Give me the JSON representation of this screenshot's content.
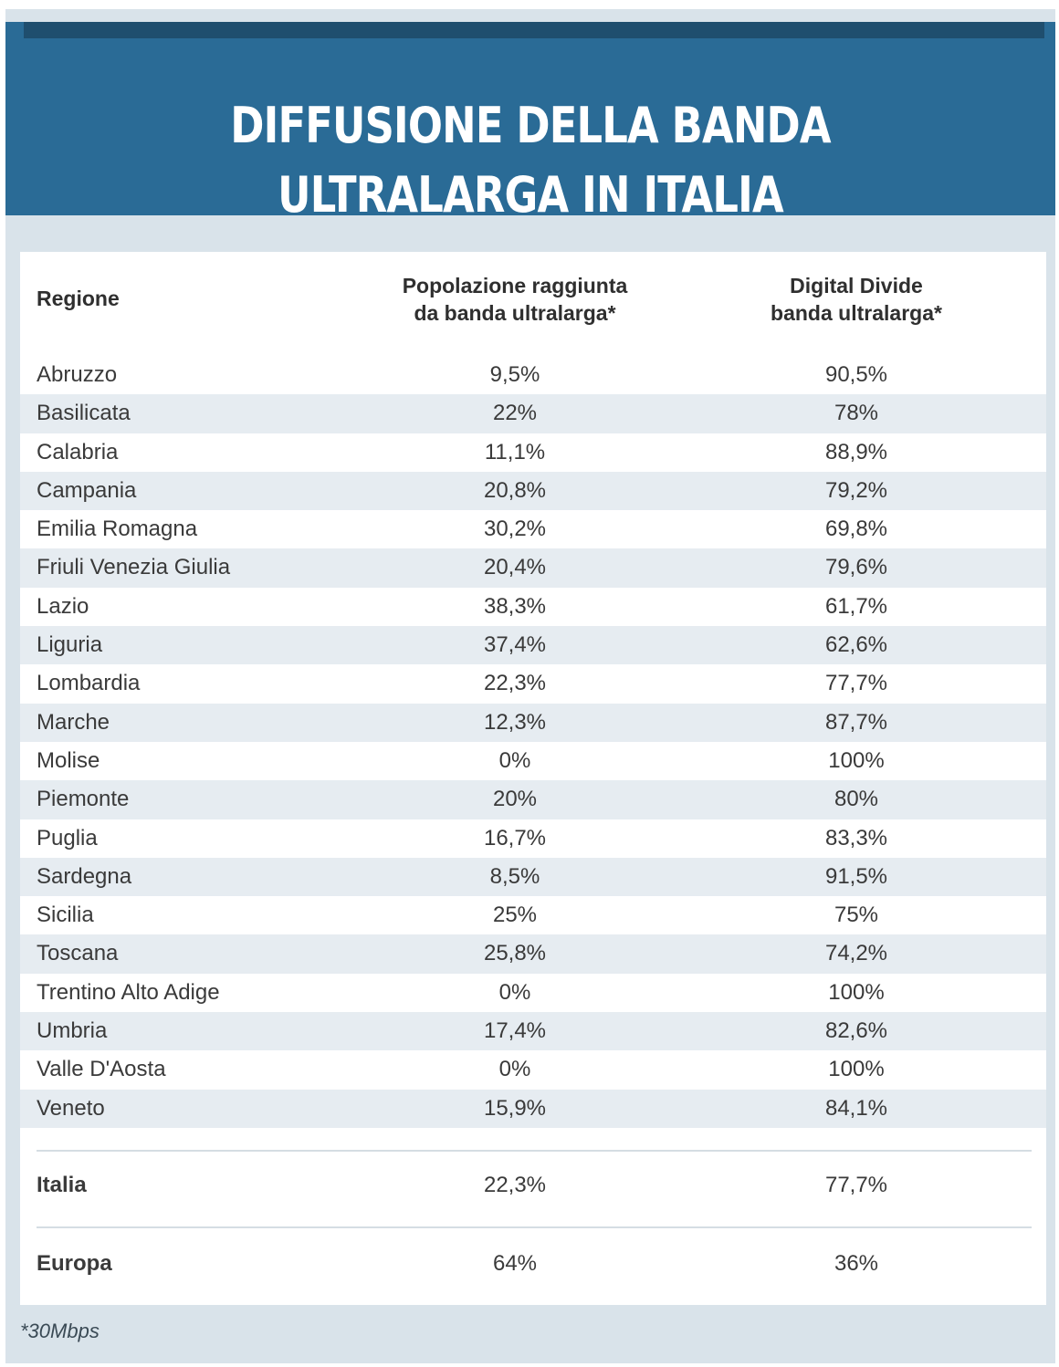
{
  "title": "DIFFUSIONE DELLA BANDA ULTRALARGA IN ITALIA",
  "columns": {
    "region": "Regione",
    "population": [
      "Popolazione raggiunta",
      "da banda ultralarga*"
    ],
    "digital_divide": [
      "Digital Divide",
      "banda ultralarga*"
    ]
  },
  "rows": [
    {
      "region": "Abruzzo",
      "population": "9,5%",
      "digital_divide": "90,5%"
    },
    {
      "region": "Basilicata",
      "population": "22%",
      "digital_divide": "78%"
    },
    {
      "region": "Calabria",
      "population": "11,1%",
      "digital_divide": "88,9%"
    },
    {
      "region": "Campania",
      "population": "20,8%",
      "digital_divide": "79,2%"
    },
    {
      "region": "Emilia Romagna",
      "population": "30,2%",
      "digital_divide": "69,8%"
    },
    {
      "region": "Friuli Venezia Giulia",
      "population": "20,4%",
      "digital_divide": "79,6%"
    },
    {
      "region": "Lazio",
      "population": "38,3%",
      "digital_divide": "61,7%"
    },
    {
      "region": "Liguria",
      "population": "37,4%",
      "digital_divide": "62,6%"
    },
    {
      "region": "Lombardia",
      "population": "22,3%",
      "digital_divide": "77,7%"
    },
    {
      "region": "Marche",
      "population": "12,3%",
      "digital_divide": "87,7%"
    },
    {
      "region": "Molise",
      "population": "0%",
      "digital_divide": "100%"
    },
    {
      "region": "Piemonte",
      "population": "20%",
      "digital_divide": "80%"
    },
    {
      "region": "Puglia",
      "population": "16,7%",
      "digital_divide": "83,3%"
    },
    {
      "region": "Sardegna",
      "population": "8,5%",
      "digital_divide": "91,5%"
    },
    {
      "region": "Sicilia",
      "population": "25%",
      "digital_divide": "75%"
    },
    {
      "region": "Toscana",
      "population": "25,8%",
      "digital_divide": "74,2%"
    },
    {
      "region": "Trentino Alto Adige",
      "population": "0%",
      "digital_divide": "100%"
    },
    {
      "region": "Umbria",
      "population": "17,4%",
      "digital_divide": "82,6%"
    },
    {
      "region": "Valle D'Aosta",
      "population": "0%",
      "digital_divide": "100%"
    },
    {
      "region": "Veneto",
      "population": "15,9%",
      "digital_divide": "84,1%"
    }
  ],
  "summary": {
    "italia": {
      "region": "Italia",
      "population": "22,3%",
      "digital_divide": "77,7%"
    },
    "europa": {
      "region": "Europa",
      "population": "64%",
      "digital_divide": "36%"
    }
  },
  "footnote": "*30Mbps",
  "colors": {
    "header_band": "#2a6b96",
    "frame": "#d9e3ea",
    "row_alt": "#e6ecf1"
  }
}
